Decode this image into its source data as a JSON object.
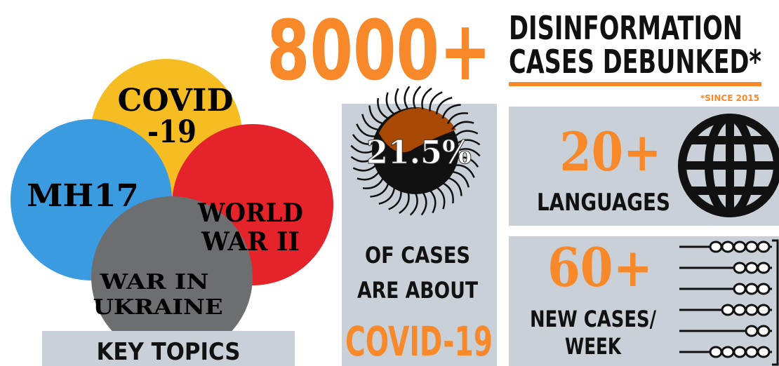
{
  "header": {
    "number": "8000+",
    "lines": [
      "DISINFORMATION",
      "CASES DEBUNKED*"
    ],
    "note": "*SINCE 2015"
  },
  "topics": [
    {
      "lines": [
        "COVID",
        "-19"
      ]
    },
    {
      "lines": [
        "MH17"
      ]
    },
    {
      "lines": [
        "WORLD",
        "WAR II"
      ]
    },
    {
      "lines": [
        "WAR IN",
        "UKRAINE"
      ]
    }
  ],
  "key_topics": "KEY TOPICS",
  "covid_panel": {
    "percent": "21.5%",
    "lines": [
      "OF CASES",
      "ARE ABOUT"
    ],
    "topic": "COVID-19"
  },
  "languages": {
    "number": "20+",
    "label": "LANGUAGES"
  },
  "cases": {
    "number": "60+",
    "lines": [
      "NEW CASES/",
      "WEEK"
    ]
  }
}
